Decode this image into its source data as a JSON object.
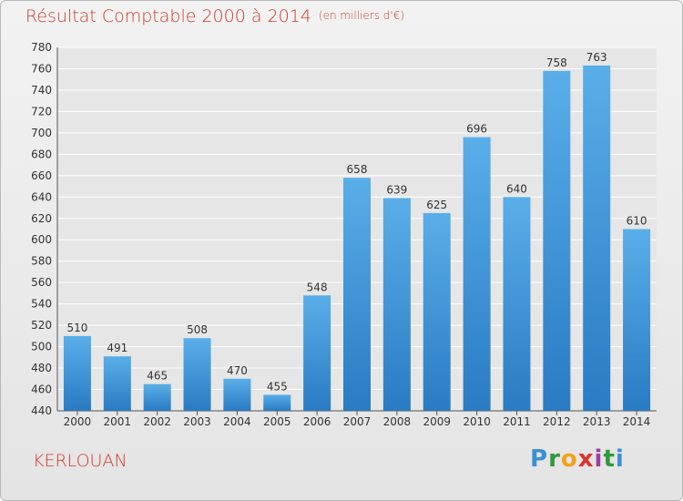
{
  "chart_data": {
    "type": "bar",
    "title": "Résultat Comptable 2000 à 2014",
    "unit_label": "(en milliers d'€)",
    "categories": [
      "2000",
      "2001",
      "2002",
      "2003",
      "2004",
      "2005",
      "2006",
      "2007",
      "2008",
      "2009",
      "2010",
      "2011",
      "2012",
      "2013",
      "2014"
    ],
    "values": [
      510,
      491,
      465,
      508,
      470,
      455,
      548,
      658,
      639,
      625,
      696,
      640,
      758,
      763,
      610
    ],
    "ylim": [
      440,
      780
    ],
    "ytick_step": 20,
    "xlabel": "",
    "ylabel": "",
    "grid": true,
    "bar_color": "#3f94d8"
  },
  "footer": {
    "place": "KERLOUAN",
    "logo_letters": [
      "P",
      "r",
      "o",
      "x",
      "i",
      "t",
      "i"
    ],
    "logo_colors": [
      "#3b8fd6",
      "#2f9a3c",
      "#f3a118",
      "#d6342c",
      "#9c3fa0",
      "#2f9a3c",
      "#3b8fd6"
    ]
  }
}
